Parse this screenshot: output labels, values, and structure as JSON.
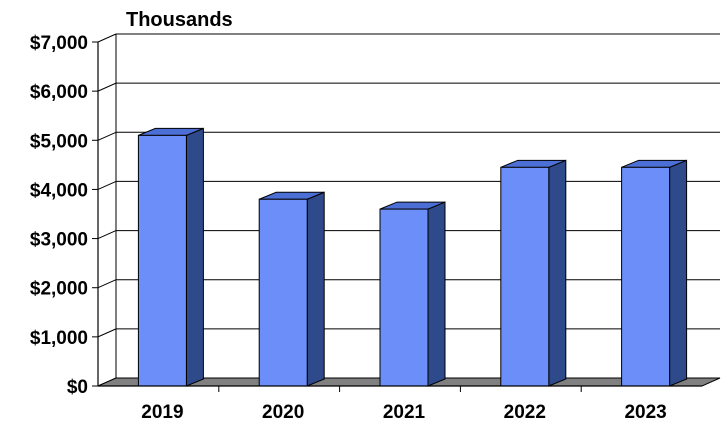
{
  "chart_data": {
    "type": "bar",
    "unit_label": "Thousands",
    "categories": [
      "2019",
      "2020",
      "2021",
      "2022",
      "2023"
    ],
    "values": [
      5100,
      3800,
      3600,
      4450,
      4450
    ],
    "ylim": [
      0,
      7000
    ],
    "yticks": [
      0,
      1000,
      2000,
      3000,
      4000,
      5000,
      6000,
      7000
    ],
    "ytick_labels": [
      "$0",
      "$1,000",
      "$2,000",
      "$3,000",
      "$4,000",
      "$5,000",
      "$6,000",
      "$7,000"
    ],
    "grid": true,
    "style": "3d",
    "colors": {
      "bar_front": "#6B8EF9",
      "bar_side": "#2E4A8A",
      "bar_top": "#4C6FD6",
      "floor": "#808080",
      "grid": "#000000"
    }
  }
}
